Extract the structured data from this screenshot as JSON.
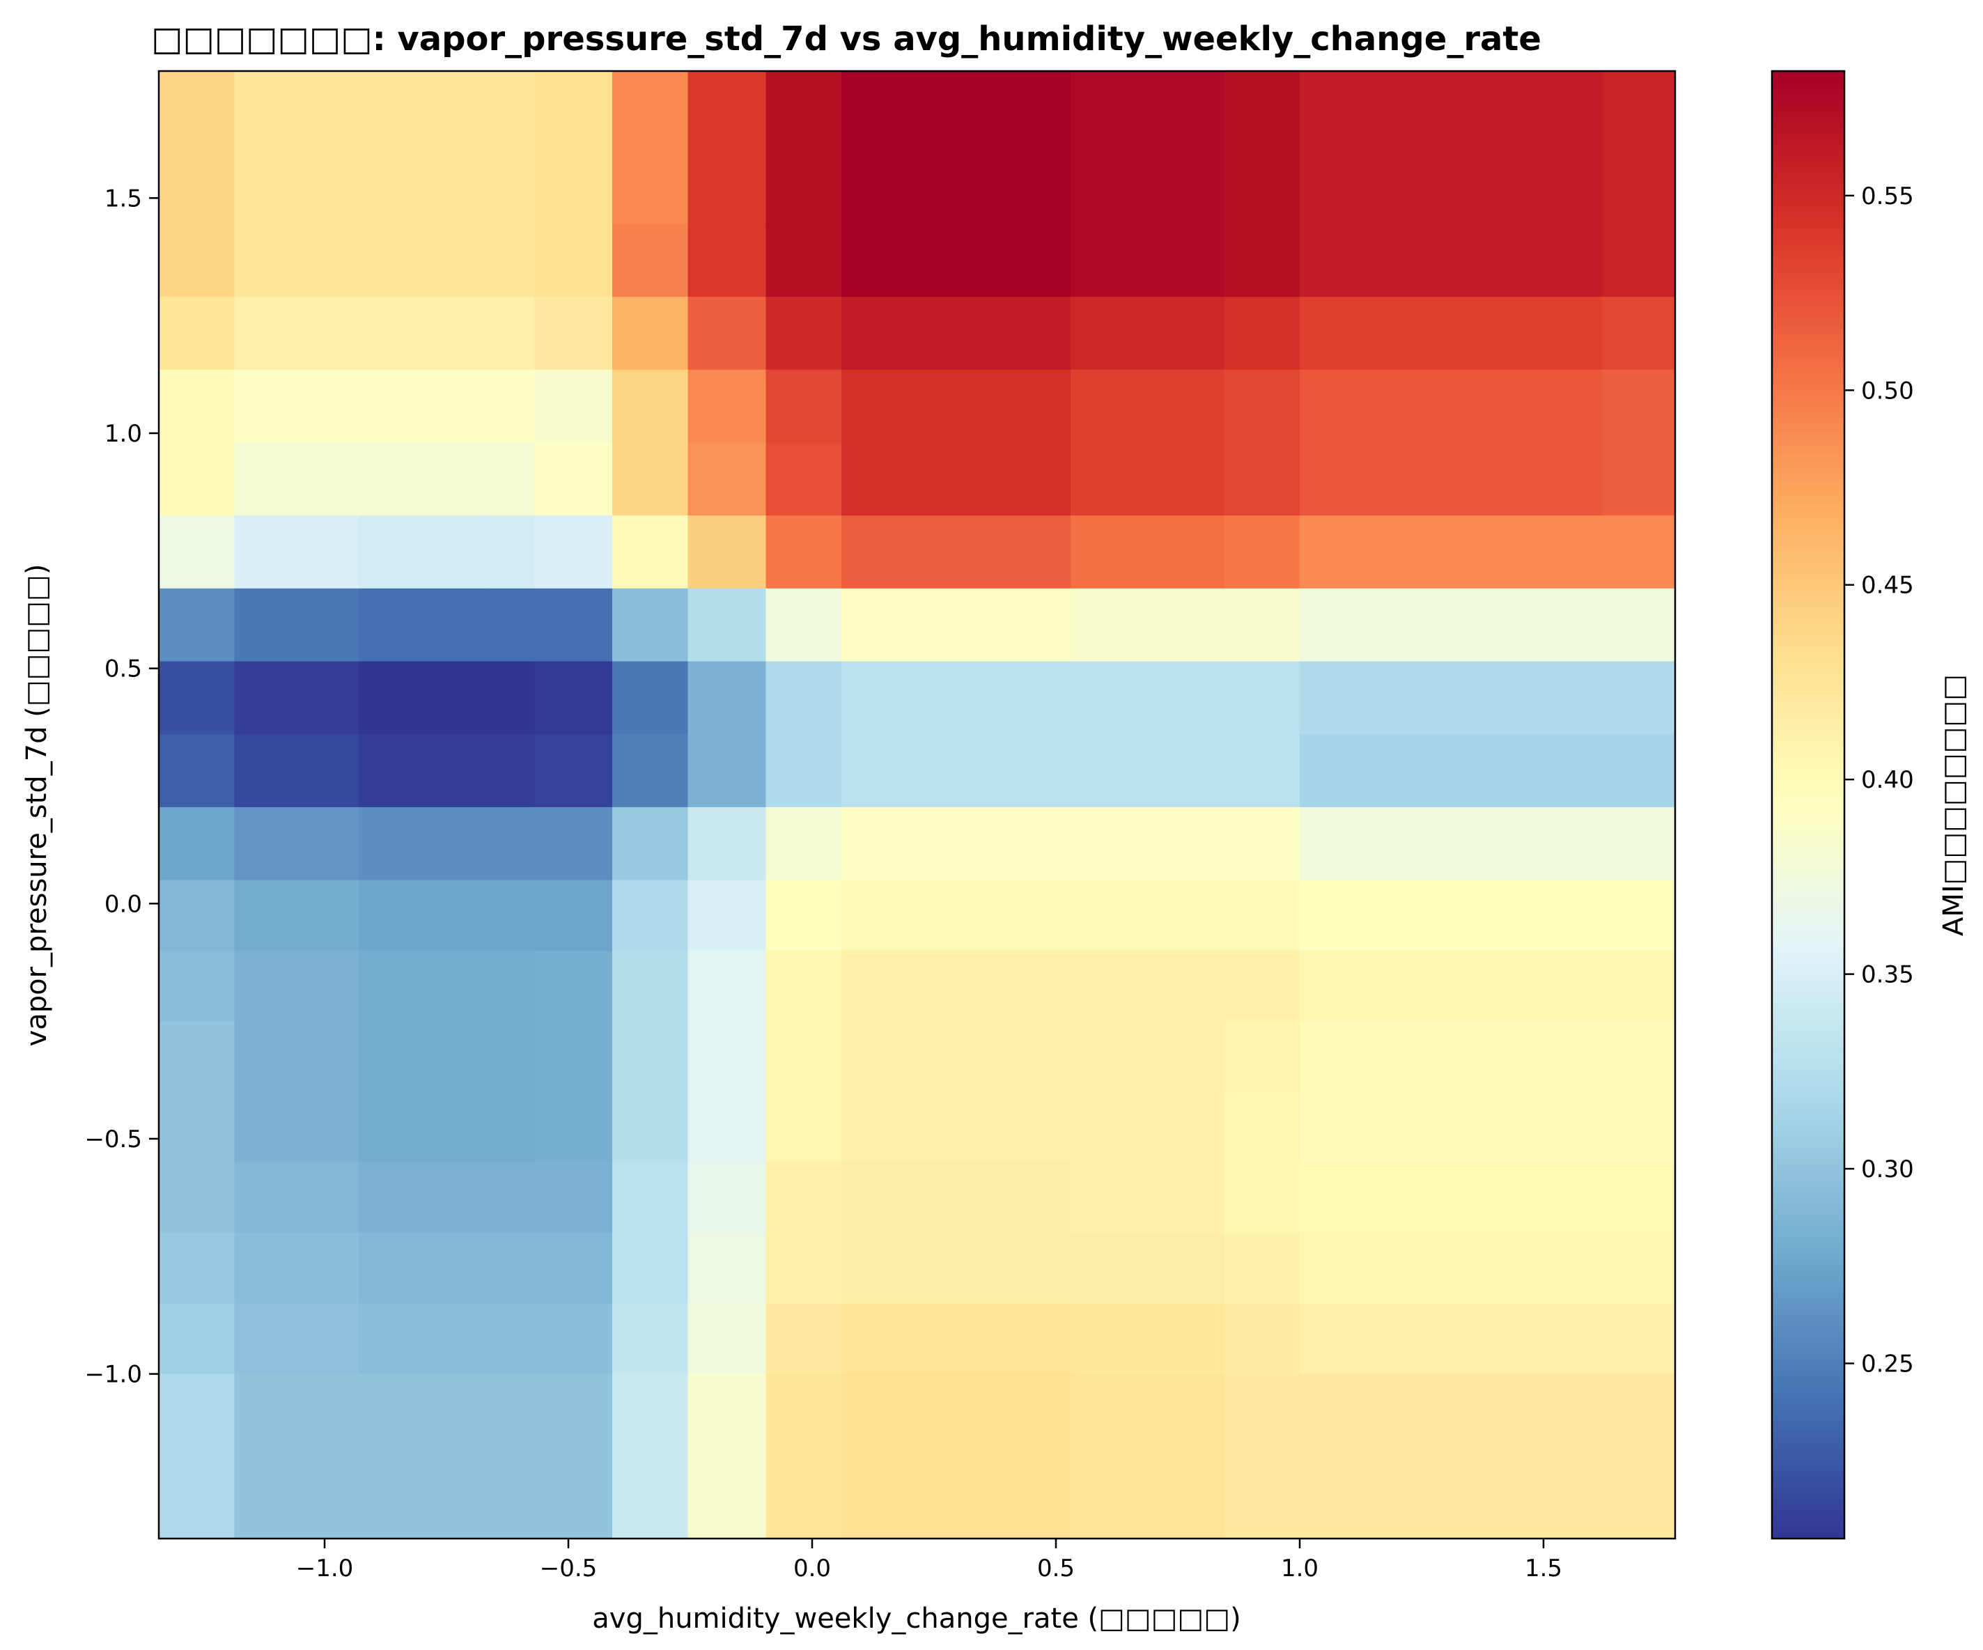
{
  "chart_data": {
    "type": "heatmap",
    "title": "□□□□□□□: vapor_pressure_std_7d vs avg_humidity_weekly_change_rate",
    "xlabel": "avg_humidity_weekly_change_rate (□□□□□)",
    "ylabel": "vapor_pressure_std_7d (□□□□□)",
    "colorbar_label": "AMI□□□□□□□□",
    "colormap": "RdYlBu_r",
    "xlim": [
      -1.34,
      1.77
    ],
    "ylim": [
      -1.35,
      1.77
    ],
    "x_ticks": [
      -1.0,
      -0.5,
      0.0,
      0.5,
      1.0,
      1.5
    ],
    "x_tick_labels": [
      "−1.0",
      "−0.5",
      "0.0",
      "0.5",
      "1.0",
      "1.5"
    ],
    "y_ticks": [
      -1.0,
      -0.5,
      0.0,
      0.5,
      1.0,
      1.5
    ],
    "y_tick_labels": [
      "−1.0",
      "−0.5",
      "0.0",
      "0.5",
      "1.0",
      "1.5"
    ],
    "colorbar_range": [
      0.205,
      0.582
    ],
    "colorbar_ticks": [
      0.25,
      0.3,
      0.35,
      0.4,
      0.45,
      0.5,
      0.55
    ],
    "colorbar_tick_labels": [
      "0.25",
      "0.30",
      "0.35",
      "0.40",
      "0.45",
      "0.50",
      "0.55"
    ],
    "x_edges": [
      -1.34,
      -1.185,
      -0.93,
      -0.67,
      -0.57,
      -0.41,
      -0.255,
      -0.095,
      0.06,
      0.215,
      0.37,
      0.53,
      0.69,
      0.845,
      1.0,
      1.155,
      1.31,
      1.465,
      1.62,
      1.77
    ],
    "y_edges": [
      -1.35,
      -1.0,
      -0.85,
      -0.7,
      -0.55,
      -0.4,
      -0.25,
      -0.1,
      0.05,
      0.205,
      0.36,
      0.515,
      0.67,
      0.825,
      0.98,
      1.135,
      1.29,
      1.445,
      1.6,
      1.77
    ],
    "values_top_to_bottom": [
      [
        0.44,
        0.425,
        0.425,
        0.425,
        0.43,
        0.49,
        0.54,
        0.57,
        0.582,
        0.582,
        0.582,
        0.575,
        0.575,
        0.57,
        0.56,
        0.56,
        0.56,
        0.56,
        0.555
      ],
      [
        0.44,
        0.425,
        0.425,
        0.425,
        0.43,
        0.49,
        0.54,
        0.57,
        0.582,
        0.582,
        0.582,
        0.575,
        0.575,
        0.57,
        0.56,
        0.56,
        0.56,
        0.56,
        0.555
      ],
      [
        0.44,
        0.425,
        0.425,
        0.425,
        0.43,
        0.495,
        0.54,
        0.57,
        0.582,
        0.582,
        0.582,
        0.575,
        0.575,
        0.57,
        0.56,
        0.56,
        0.56,
        0.56,
        0.555
      ],
      [
        0.425,
        0.41,
        0.41,
        0.41,
        0.42,
        0.465,
        0.515,
        0.55,
        0.56,
        0.56,
        0.56,
        0.55,
        0.55,
        0.545,
        0.535,
        0.535,
        0.535,
        0.535,
        0.53
      ],
      [
        0.4,
        0.39,
        0.39,
        0.39,
        0.385,
        0.44,
        0.49,
        0.53,
        0.545,
        0.545,
        0.545,
        0.535,
        0.535,
        0.53,
        0.52,
        0.52,
        0.52,
        0.52,
        0.515
      ],
      [
        0.4,
        0.38,
        0.38,
        0.38,
        0.39,
        0.44,
        0.485,
        0.525,
        0.545,
        0.545,
        0.545,
        0.535,
        0.535,
        0.53,
        0.52,
        0.52,
        0.52,
        0.52,
        0.515
      ],
      [
        0.37,
        0.35,
        0.345,
        0.345,
        0.35,
        0.4,
        0.445,
        0.5,
        0.515,
        0.515,
        0.515,
        0.505,
        0.505,
        0.5,
        0.49,
        0.49,
        0.49,
        0.49,
        0.49
      ],
      [
        0.26,
        0.245,
        0.24,
        0.24,
        0.24,
        0.295,
        0.325,
        0.375,
        0.39,
        0.39,
        0.39,
        0.385,
        0.385,
        0.385,
        0.375,
        0.375,
        0.375,
        0.375,
        0.375
      ],
      [
        0.22,
        0.21,
        0.205,
        0.205,
        0.207,
        0.245,
        0.285,
        0.32,
        0.33,
        0.33,
        0.33,
        0.33,
        0.33,
        0.33,
        0.32,
        0.32,
        0.32,
        0.32,
        0.32
      ],
      [
        0.23,
        0.215,
        0.21,
        0.21,
        0.212,
        0.25,
        0.285,
        0.32,
        0.33,
        0.33,
        0.33,
        0.33,
        0.33,
        0.33,
        0.315,
        0.315,
        0.315,
        0.315,
        0.315
      ],
      [
        0.275,
        0.265,
        0.26,
        0.26,
        0.26,
        0.305,
        0.34,
        0.38,
        0.39,
        0.39,
        0.39,
        0.39,
        0.39,
        0.39,
        0.375,
        0.375,
        0.375,
        0.375,
        0.375
      ],
      [
        0.29,
        0.28,
        0.275,
        0.275,
        0.275,
        0.32,
        0.35,
        0.395,
        0.4,
        0.4,
        0.4,
        0.4,
        0.4,
        0.4,
        0.395,
        0.395,
        0.395,
        0.395,
        0.395
      ],
      [
        0.295,
        0.285,
        0.28,
        0.28,
        0.282,
        0.325,
        0.36,
        0.405,
        0.41,
        0.41,
        0.41,
        0.41,
        0.41,
        0.41,
        0.405,
        0.405,
        0.405,
        0.405,
        0.405
      ],
      [
        0.3,
        0.285,
        0.28,
        0.28,
        0.282,
        0.325,
        0.36,
        0.405,
        0.41,
        0.41,
        0.41,
        0.41,
        0.41,
        0.408,
        0.4,
        0.4,
        0.4,
        0.4,
        0.4
      ],
      [
        0.3,
        0.285,
        0.28,
        0.28,
        0.282,
        0.325,
        0.36,
        0.405,
        0.412,
        0.412,
        0.412,
        0.41,
        0.41,
        0.405,
        0.4,
        0.4,
        0.4,
        0.4,
        0.4
      ],
      [
        0.3,
        0.29,
        0.285,
        0.285,
        0.285,
        0.33,
        0.365,
        0.41,
        0.415,
        0.415,
        0.415,
        0.41,
        0.41,
        0.405,
        0.403,
        0.403,
        0.403,
        0.403,
        0.403
      ],
      [
        0.305,
        0.295,
        0.29,
        0.29,
        0.29,
        0.33,
        0.37,
        0.41,
        0.415,
        0.415,
        0.415,
        0.415,
        0.415,
        0.41,
        0.405,
        0.405,
        0.405,
        0.405,
        0.405
      ],
      [
        0.31,
        0.298,
        0.295,
        0.295,
        0.295,
        0.335,
        0.375,
        0.42,
        0.425,
        0.425,
        0.425,
        0.422,
        0.422,
        0.418,
        0.412,
        0.412,
        0.412,
        0.412,
        0.412
      ],
      [
        0.32,
        0.3,
        0.3,
        0.3,
        0.3,
        0.34,
        0.385,
        0.425,
        0.43,
        0.43,
        0.43,
        0.425,
        0.425,
        0.42,
        0.42,
        0.42,
        0.42,
        0.42,
        0.42
      ]
    ]
  }
}
